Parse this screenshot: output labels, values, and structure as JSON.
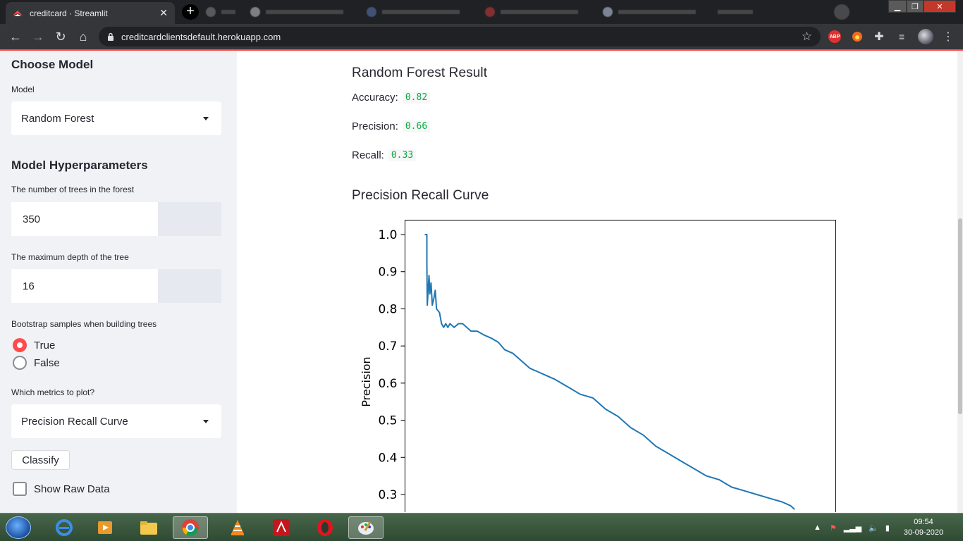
{
  "browser": {
    "active_tab_title": "creditcard · Streamlit",
    "url": "creditcardclientsdefault.herokuapp.com",
    "ext_abp": "ABP"
  },
  "sidebar": {
    "choose_model_heading": "Choose Model",
    "model_label": "Model",
    "model_value": "Random Forest",
    "hyper_heading": "Model Hyperparameters",
    "trees_label": "The number of trees in the forest",
    "trees_value": "350",
    "depth_label": "The maximum depth of the tree",
    "depth_value": "16",
    "bootstrap_label": "Bootstrap samples when building trees",
    "bootstrap_options": [
      "True",
      "False"
    ],
    "bootstrap_selected": "True",
    "metrics_label": "Which metrics to plot?",
    "metrics_value": "Precision Recall Curve",
    "classify_button": "Classify",
    "show_raw_label": "Show Raw Data"
  },
  "main": {
    "result_heading": "Random Forest Result",
    "accuracy_label": "Accuracy:",
    "accuracy_value": "0.82",
    "precision_label": "Precision:",
    "precision_value": "0.66",
    "recall_label": "Recall:",
    "recall_value": "0.33",
    "curve_heading": "Precision Recall Curve"
  },
  "chart_data": {
    "type": "line",
    "title": "",
    "xlabel": "",
    "ylabel": "Precision",
    "ylim_visible": [
      0.27,
      1.04
    ],
    "yticks": [
      "0.3",
      "0.4",
      "0.5",
      "0.6",
      "0.7",
      "0.8",
      "0.9",
      "1.0"
    ],
    "grid": false,
    "series": [
      {
        "color": "#1f77b4",
        "x": [
          0.0,
          0.005,
          0.005,
          0.006,
          0.01,
          0.012,
          0.015,
          0.018,
          0.022,
          0.025,
          0.028,
          0.035,
          0.04,
          0.045,
          0.05,
          0.055,
          0.06,
          0.07,
          0.08,
          0.09,
          0.1,
          0.11,
          0.125,
          0.14,
          0.16,
          0.175,
          0.19,
          0.21,
          0.23,
          0.25,
          0.27,
          0.29,
          0.31,
          0.34,
          0.37,
          0.4,
          0.43,
          0.46,
          0.49,
          0.52,
          0.55,
          0.58,
          0.61,
          0.64,
          0.67,
          0.7,
          0.73,
          0.76,
          0.79,
          0.82,
          0.85,
          0.87,
          0.88
        ],
        "y": [
          1.0,
          1.0,
          0.92,
          0.81,
          0.89,
          0.84,
          0.87,
          0.81,
          0.83,
          0.85,
          0.8,
          0.79,
          0.76,
          0.75,
          0.76,
          0.75,
          0.76,
          0.75,
          0.76,
          0.76,
          0.75,
          0.74,
          0.74,
          0.73,
          0.72,
          0.71,
          0.69,
          0.68,
          0.66,
          0.64,
          0.63,
          0.62,
          0.61,
          0.59,
          0.57,
          0.56,
          0.53,
          0.51,
          0.48,
          0.46,
          0.43,
          0.41,
          0.39,
          0.37,
          0.35,
          0.34,
          0.32,
          0.31,
          0.3,
          0.29,
          0.28,
          0.27,
          0.26
        ]
      }
    ]
  },
  "taskbar": {
    "time": "09:54",
    "date": "30-09-2020"
  }
}
